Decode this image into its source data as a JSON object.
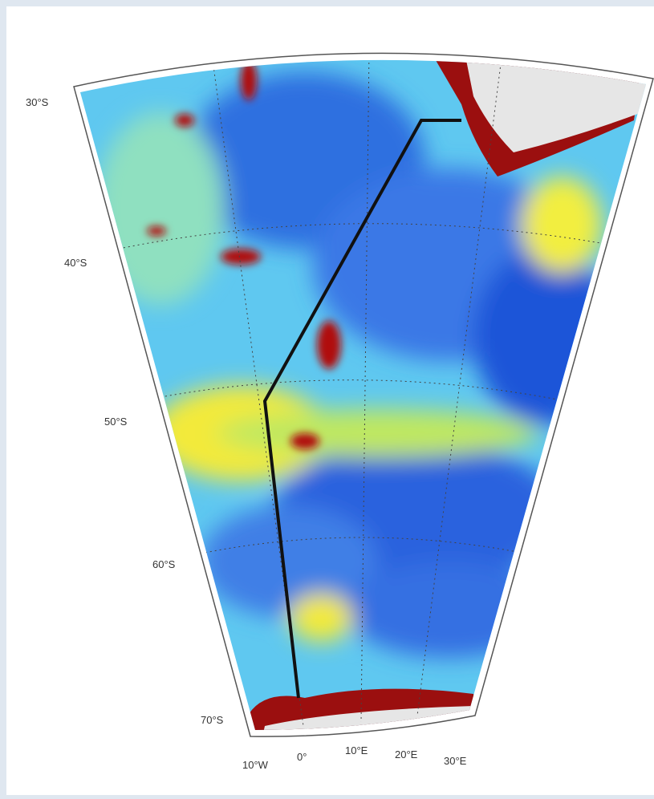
{
  "map": {
    "lat_labels": [
      "30°S",
      "40°S",
      "50°S",
      "60°S",
      "70°S"
    ],
    "lon_labels": [
      "10°W",
      "0°",
      "10°E",
      "20°E",
      "30°E"
    ]
  }
}
